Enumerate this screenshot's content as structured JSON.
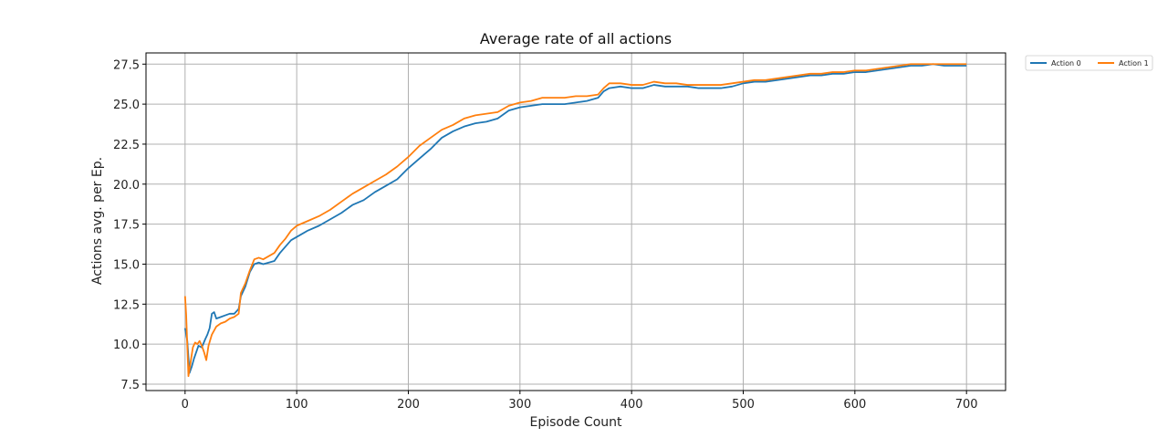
{
  "chart_data": {
    "type": "line",
    "title": "Average rate of all actions",
    "xlabel": "Episode Count",
    "ylabel": "Actions avg. per Ep.",
    "xlim": [
      -35,
      735
    ],
    "ylim": [
      7.1,
      28.2
    ],
    "xticks": [
      0,
      100,
      200,
      300,
      400,
      500,
      600,
      700
    ],
    "yticks": [
      7.5,
      10.0,
      12.5,
      15.0,
      17.5,
      20.0,
      22.5,
      25.0,
      27.5
    ],
    "ytick_labels": [
      "7.5",
      "10.0",
      "12.5",
      "15.0",
      "17.5",
      "20.0",
      "22.5",
      "25.0",
      "27.5"
    ],
    "grid": true,
    "legend_position": "outside top-right",
    "series": [
      {
        "name": "Action 0",
        "color": "#1f77b4",
        "points": [
          [
            0,
            11.0
          ],
          [
            2,
            10.2
          ],
          [
            4,
            8.2
          ],
          [
            6,
            8.6
          ],
          [
            8,
            9.1
          ],
          [
            10,
            9.5
          ],
          [
            12,
            9.9
          ],
          [
            15,
            9.8
          ],
          [
            18,
            10.3
          ],
          [
            20,
            10.6
          ],
          [
            22,
            11.0
          ],
          [
            24,
            11.9
          ],
          [
            26,
            12.0
          ],
          [
            28,
            11.6
          ],
          [
            32,
            11.7
          ],
          [
            36,
            11.8
          ],
          [
            40,
            11.9
          ],
          [
            44,
            11.9
          ],
          [
            48,
            12.2
          ],
          [
            50,
            13.0
          ],
          [
            54,
            13.6
          ],
          [
            58,
            14.5
          ],
          [
            62,
            15.0
          ],
          [
            66,
            15.1
          ],
          [
            70,
            15.0
          ],
          [
            75,
            15.1
          ],
          [
            80,
            15.2
          ],
          [
            85,
            15.7
          ],
          [
            90,
            16.1
          ],
          [
            95,
            16.5
          ],
          [
            100,
            16.7
          ],
          [
            110,
            17.1
          ],
          [
            120,
            17.4
          ],
          [
            130,
            17.8
          ],
          [
            140,
            18.2
          ],
          [
            150,
            18.7
          ],
          [
            160,
            19.0
          ],
          [
            170,
            19.5
          ],
          [
            180,
            19.9
          ],
          [
            190,
            20.3
          ],
          [
            200,
            21.0
          ],
          [
            210,
            21.6
          ],
          [
            220,
            22.2
          ],
          [
            230,
            22.9
          ],
          [
            240,
            23.3
          ],
          [
            250,
            23.6
          ],
          [
            260,
            23.8
          ],
          [
            270,
            23.9
          ],
          [
            280,
            24.1
          ],
          [
            290,
            24.6
          ],
          [
            300,
            24.8
          ],
          [
            310,
            24.9
          ],
          [
            320,
            25.0
          ],
          [
            330,
            25.0
          ],
          [
            340,
            25.0
          ],
          [
            350,
            25.1
          ],
          [
            360,
            25.2
          ],
          [
            370,
            25.4
          ],
          [
            375,
            25.8
          ],
          [
            380,
            26.0
          ],
          [
            390,
            26.1
          ],
          [
            400,
            26.0
          ],
          [
            410,
            26.0
          ],
          [
            420,
            26.2
          ],
          [
            430,
            26.1
          ],
          [
            440,
            26.1
          ],
          [
            450,
            26.1
          ],
          [
            460,
            26.0
          ],
          [
            470,
            26.0
          ],
          [
            480,
            26.0
          ],
          [
            490,
            26.1
          ],
          [
            500,
            26.3
          ],
          [
            510,
            26.4
          ],
          [
            520,
            26.4
          ],
          [
            530,
            26.5
          ],
          [
            540,
            26.6
          ],
          [
            550,
            26.7
          ],
          [
            560,
            26.8
          ],
          [
            570,
            26.8
          ],
          [
            580,
            26.9
          ],
          [
            590,
            26.9
          ],
          [
            600,
            27.0
          ],
          [
            610,
            27.0
          ],
          [
            620,
            27.1
          ],
          [
            630,
            27.2
          ],
          [
            640,
            27.3
          ],
          [
            650,
            27.4
          ],
          [
            660,
            27.4
          ],
          [
            670,
            27.5
          ],
          [
            680,
            27.4
          ],
          [
            690,
            27.4
          ],
          [
            700,
            27.4
          ]
        ]
      },
      {
        "name": "Action 1",
        "color": "#ff7f0e",
        "points": [
          [
            0,
            13.0
          ],
          [
            1,
            11.8
          ],
          [
            3,
            8.0
          ],
          [
            5,
            8.9
          ],
          [
            7,
            9.8
          ],
          [
            9,
            10.1
          ],
          [
            11,
            10.0
          ],
          [
            13,
            10.2
          ],
          [
            15,
            9.9
          ],
          [
            17,
            9.5
          ],
          [
            19,
            9.0
          ],
          [
            21,
            9.9
          ],
          [
            24,
            10.6
          ],
          [
            28,
            11.1
          ],
          [
            32,
            11.3
          ],
          [
            36,
            11.4
          ],
          [
            40,
            11.6
          ],
          [
            44,
            11.7
          ],
          [
            48,
            11.9
          ],
          [
            50,
            13.2
          ],
          [
            54,
            13.8
          ],
          [
            58,
            14.6
          ],
          [
            62,
            15.3
          ],
          [
            66,
            15.4
          ],
          [
            70,
            15.3
          ],
          [
            75,
            15.5
          ],
          [
            80,
            15.7
          ],
          [
            85,
            16.2
          ],
          [
            90,
            16.6
          ],
          [
            95,
            17.1
          ],
          [
            100,
            17.4
          ],
          [
            110,
            17.7
          ],
          [
            120,
            18.0
          ],
          [
            130,
            18.4
          ],
          [
            140,
            18.9
          ],
          [
            150,
            19.4
          ],
          [
            160,
            19.8
          ],
          [
            170,
            20.2
          ],
          [
            180,
            20.6
          ],
          [
            190,
            21.1
          ],
          [
            200,
            21.7
          ],
          [
            210,
            22.4
          ],
          [
            220,
            22.9
          ],
          [
            230,
            23.4
          ],
          [
            240,
            23.7
          ],
          [
            250,
            24.1
          ],
          [
            260,
            24.3
          ],
          [
            270,
            24.4
          ],
          [
            280,
            24.5
          ],
          [
            290,
            24.9
          ],
          [
            300,
            25.1
          ],
          [
            310,
            25.2
          ],
          [
            320,
            25.4
          ],
          [
            330,
            25.4
          ],
          [
            340,
            25.4
          ],
          [
            350,
            25.5
          ],
          [
            360,
            25.5
          ],
          [
            370,
            25.6
          ],
          [
            375,
            26.0
          ],
          [
            380,
            26.3
          ],
          [
            390,
            26.3
          ],
          [
            400,
            26.2
          ],
          [
            410,
            26.2
          ],
          [
            420,
            26.4
          ],
          [
            430,
            26.3
          ],
          [
            440,
            26.3
          ],
          [
            450,
            26.2
          ],
          [
            460,
            26.2
          ],
          [
            470,
            26.2
          ],
          [
            480,
            26.2
          ],
          [
            490,
            26.3
          ],
          [
            500,
            26.4
          ],
          [
            510,
            26.5
          ],
          [
            520,
            26.5
          ],
          [
            530,
            26.6
          ],
          [
            540,
            26.7
          ],
          [
            550,
            26.8
          ],
          [
            560,
            26.9
          ],
          [
            570,
            26.9
          ],
          [
            580,
            27.0
          ],
          [
            590,
            27.0
          ],
          [
            600,
            27.1
          ],
          [
            610,
            27.1
          ],
          [
            620,
            27.2
          ],
          [
            630,
            27.3
          ],
          [
            640,
            27.4
          ],
          [
            650,
            27.5
          ],
          [
            660,
            27.5
          ],
          [
            670,
            27.5
          ],
          [
            680,
            27.5
          ],
          [
            690,
            27.5
          ],
          [
            700,
            27.5
          ]
        ]
      }
    ]
  }
}
